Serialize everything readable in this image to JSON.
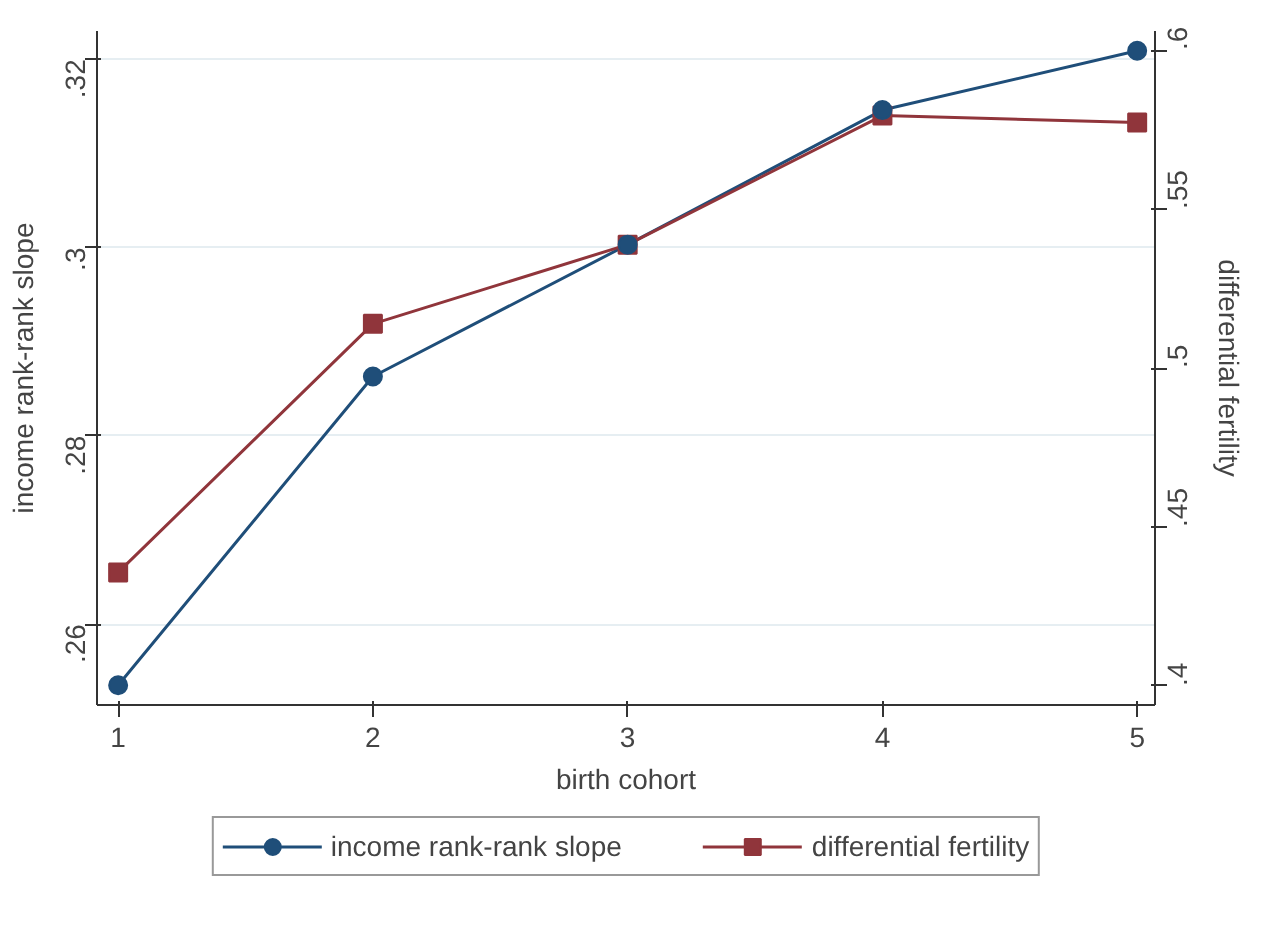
{
  "chart_data": {
    "type": "line",
    "xlabel": "birth cohort",
    "ylabel": "income rank-rank slope",
    "y2label": "differential fertility",
    "x": [
      1,
      2,
      3,
      4,
      5
    ],
    "series": [
      {
        "name": "income rank-rank slope",
        "color": "#1f4e79",
        "values": [
          0.2535,
          0.2863,
          0.3003,
          0.3146,
          0.3209
        ],
        "marker": "circle"
      },
      {
        "name": "differential fertility",
        "color": "#90353b",
        "values": [
          0.4357,
          0.5139,
          0.5388,
          0.5794,
          0.5772
        ],
        "marker": "square",
        "axis": "y2"
      }
    ],
    "xlim": [
      0.917,
      5.07
    ],
    "xticks": [
      1,
      2,
      3,
      4,
      5
    ],
    "ylim": [
      0.2514,
      0.323
    ],
    "yticks": [
      {
        "value": 0.26,
        "label": ".26"
      },
      {
        "value": 0.28,
        "label": ".28"
      },
      {
        "value": 0.3,
        "label": ".3"
      },
      {
        "value": 0.32,
        "label": ".32"
      }
    ],
    "y2lim": [
      0.394,
      0.606
    ],
    "y2ticks": [
      {
        "value": 0.4,
        "label": ".4"
      },
      {
        "value": 0.45,
        "label": ".45"
      },
      {
        "value": 0.5,
        "label": ".5"
      },
      {
        "value": 0.55,
        "label": ".55"
      },
      {
        "value": 0.6,
        "label": ".6"
      }
    ],
    "grid": "y",
    "legend": "bottom",
    "line_style": "solid"
  }
}
